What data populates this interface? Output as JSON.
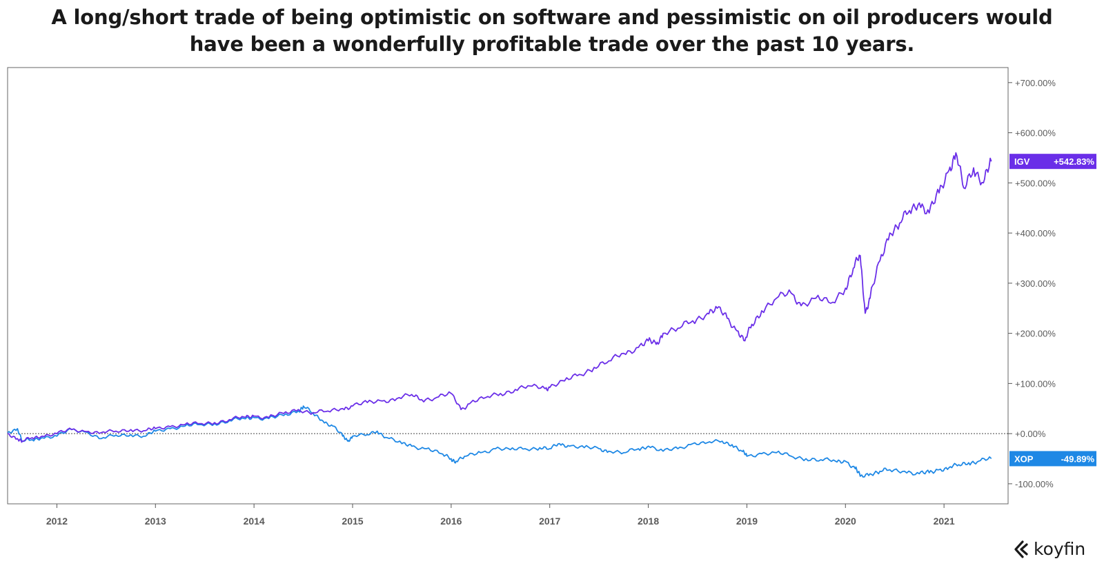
{
  "title": {
    "line1": "A long/short trade of being optimistic on software and pessimistic on oil producers would",
    "line2": "have been a wonderfully profitable trade over the past 10 years."
  },
  "brand": {
    "name": "koyfin",
    "icon": "koyfin-logo-icon"
  },
  "colors": {
    "igv": "#6a2ee8",
    "xop": "#1e88e5",
    "axis": "#555555",
    "zero_line": "#444444"
  },
  "chart_data": {
    "type": "line",
    "x_range": [
      2011.5,
      2021.65
    ],
    "ylim": [
      -140,
      730
    ],
    "y_ticks": [
      {
        "v": 700,
        "label": "+700.00%"
      },
      {
        "v": 600,
        "label": "+600.00%"
      },
      {
        "v": 500,
        "label": "+500.00%"
      },
      {
        "v": 400,
        "label": "+400.00%"
      },
      {
        "v": 300,
        "label": "+300.00%"
      },
      {
        "v": 200,
        "label": "+200.00%"
      },
      {
        "v": 100,
        "label": "+100.00%"
      },
      {
        "v": 0,
        "label": "+0.00%"
      },
      {
        "v": -100,
        "label": "-100.00%"
      }
    ],
    "x_ticks": [
      {
        "v": 2012,
        "label": "2012"
      },
      {
        "v": 2013,
        "label": "2013"
      },
      {
        "v": 2014,
        "label": "2014"
      },
      {
        "v": 2015,
        "label": "2015"
      },
      {
        "v": 2016,
        "label": "2016"
      },
      {
        "v": 2017,
        "label": "2017"
      },
      {
        "v": 2018,
        "label": "2018"
      },
      {
        "v": 2019,
        "label": "2019"
      },
      {
        "v": 2020,
        "label": "2020"
      },
      {
        "v": 2021,
        "label": "2021"
      }
    ],
    "series": [
      {
        "name": "IGV",
        "last_label": "+542.83%",
        "x": [
          2011.5,
          2011.6,
          2011.65,
          2011.75,
          2011.85,
          2012.0,
          2012.15,
          2012.3,
          2012.45,
          2012.6,
          2012.75,
          2012.9,
          2013.0,
          2013.15,
          2013.3,
          2013.45,
          2013.6,
          2013.75,
          2013.9,
          2014.0,
          2014.15,
          2014.3,
          2014.45,
          2014.6,
          2014.75,
          2014.9,
          2015.0,
          2015.15,
          2015.3,
          2015.45,
          2015.6,
          2015.7,
          2015.85,
          2016.0,
          2016.1,
          2016.2,
          2016.35,
          2016.5,
          2016.65,
          2016.8,
          2016.95,
          2017.0,
          2017.15,
          2017.3,
          2017.45,
          2017.6,
          2017.75,
          2017.9,
          2018.0,
          2018.08,
          2018.15,
          2018.3,
          2018.45,
          2018.6,
          2018.7,
          2018.8,
          2018.9,
          2018.98,
          2019.05,
          2019.15,
          2019.3,
          2019.45,
          2019.55,
          2019.7,
          2019.85,
          2020.0,
          2020.08,
          2020.15,
          2020.2,
          2020.25,
          2020.35,
          2020.45,
          2020.55,
          2020.65,
          2020.75,
          2020.85,
          2020.95,
          2021.05,
          2021.12,
          2021.2,
          2021.3,
          2021.4,
          2021.48
        ],
        "y": [
          0,
          -10,
          -15,
          -8,
          -5,
          0,
          8,
          4,
          2,
          5,
          8,
          6,
          10,
          14,
          18,
          20,
          22,
          28,
          33,
          35,
          32,
          40,
          48,
          42,
          45,
          50,
          55,
          62,
          65,
          70,
          78,
          68,
          72,
          80,
          48,
          62,
          72,
          80,
          88,
          95,
          90,
          92,
          105,
          118,
          132,
          145,
          160,
          172,
          185,
          178,
          200,
          210,
          225,
          240,
          250,
          230,
          205,
          185,
          218,
          245,
          270,
          280,
          255,
          270,
          260,
          290,
          330,
          355,
          240,
          270,
          345,
          400,
          420,
          445,
          460,
          440,
          480,
          525,
          560,
          490,
          530,
          500,
          542.83
        ]
      },
      {
        "name": "XOP",
        "last_label": "-49.89%",
        "x": [
          2011.5,
          2011.6,
          2011.65,
          2011.75,
          2011.85,
          2012.0,
          2012.15,
          2012.3,
          2012.45,
          2012.6,
          2012.75,
          2012.9,
          2013.0,
          2013.15,
          2013.3,
          2013.45,
          2013.6,
          2013.75,
          2013.9,
          2014.0,
          2014.15,
          2014.3,
          2014.45,
          2014.5,
          2014.6,
          2014.7,
          2014.8,
          2014.9,
          2014.95,
          2015.0,
          2015.15,
          2015.25,
          2015.35,
          2015.5,
          2015.6,
          2015.75,
          2015.9,
          2016.0,
          2016.05,
          2016.15,
          2016.3,
          2016.45,
          2016.6,
          2016.75,
          2016.9,
          2017.0,
          2017.1,
          2017.2,
          2017.35,
          2017.5,
          2017.6,
          2017.75,
          2017.9,
          2018.0,
          2018.15,
          2018.3,
          2018.45,
          2018.6,
          2018.75,
          2018.85,
          2018.95,
          2019.0,
          2019.15,
          2019.3,
          2019.45,
          2019.6,
          2019.75,
          2019.9,
          2020.0,
          2020.1,
          2020.15,
          2020.25,
          2020.35,
          2020.45,
          2020.6,
          2020.75,
          2020.85,
          2020.95,
          2021.05,
          2021.15,
          2021.25,
          2021.35,
          2021.48
        ],
        "y": [
          2,
          10,
          -15,
          -12,
          -8,
          -5,
          8,
          3,
          -10,
          -3,
          -2,
          -5,
          5,
          10,
          15,
          18,
          20,
          26,
          30,
          32,
          30,
          36,
          45,
          55,
          40,
          25,
          15,
          -5,
          -15,
          -5,
          -2,
          5,
          -8,
          -20,
          -25,
          -30,
          -40,
          -50,
          -55,
          -45,
          -38,
          -30,
          -32,
          -30,
          -28,
          -30,
          -20,
          -25,
          -28,
          -30,
          -35,
          -38,
          -30,
          -25,
          -35,
          -30,
          -20,
          -18,
          -15,
          -22,
          -35,
          -45,
          -40,
          -38,
          -45,
          -50,
          -52,
          -55,
          -55,
          -70,
          -85,
          -80,
          -75,
          -72,
          -75,
          -80,
          -78,
          -72,
          -68,
          -62,
          -58,
          -55,
          -49.89
        ]
      }
    ]
  }
}
